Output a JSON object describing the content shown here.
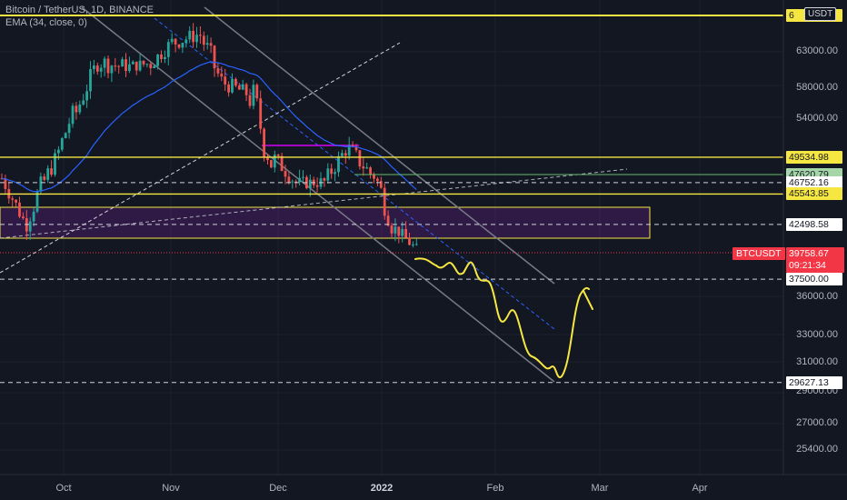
{
  "legend": {
    "symbol": "Bitcoin / TetherUS, 1D, BINANCE",
    "indicator": "EMA (34, close, 0)"
  },
  "currency_button": "USDT",
  "price_axis_labels": [
    "63000.00",
    "58000.00",
    "54000.00",
    "36000.00",
    "33000.00",
    "31000.00",
    "29000.00",
    "27000.00",
    "25400.00"
  ],
  "time_axis_labels": [
    {
      "text": "Oct",
      "bold": false
    },
    {
      "text": "Nov",
      "bold": false
    },
    {
      "text": "Dec",
      "bold": false
    },
    {
      "text": "2022",
      "bold": true
    },
    {
      "text": "Feb",
      "bold": false
    },
    {
      "text": "Mar",
      "bold": false
    },
    {
      "text": "Apr",
      "bold": false
    }
  ],
  "price_tags": [
    {
      "name": "level-6xxxx",
      "text": "6",
      "price": 67200,
      "bg": "#f5e642",
      "fg": "#131722"
    },
    {
      "name": "level-49534",
      "text": "49534.98",
      "price": 49534.98,
      "bg": "#f5e642",
      "fg": "#131722"
    },
    {
      "name": "level-47620",
      "text": "47620.79",
      "price": 47620.79,
      "bg": "#a5d6a7",
      "fg": "#131722"
    },
    {
      "name": "level-46752",
      "text": "46752.16",
      "price": 46752.16,
      "bg": "#ffffff",
      "fg": "#131722"
    },
    {
      "name": "level-45543",
      "text": "45543.85",
      "price": 45543.85,
      "bg": "#f5e642",
      "fg": "#131722"
    },
    {
      "name": "level-42498",
      "text": "42498.58",
      "price": 42498.58,
      "bg": "#ffffff",
      "fg": "#131722"
    },
    {
      "name": "level-37500",
      "text": "37500.00",
      "price": 37500,
      "bg": "#ffffff",
      "fg": "#131722"
    },
    {
      "name": "level-29627",
      "text": "29627.13",
      "price": 29627.13,
      "bg": "#ffffff",
      "fg": "#131722"
    }
  ],
  "last_price": {
    "symbol": "BTCUSDT",
    "price": "39758.67",
    "countdown": "09:21:34",
    "color": "#f23645"
  },
  "colors": {
    "up": "#26a69a",
    "down": "#ef5350",
    "ema": "#2962ff",
    "yellow": "#f5e642",
    "purple_zone": "#7b1fa2",
    "magenta": "#d500f9",
    "green_line": "#66bb6a",
    "channel": "#787b86",
    "dash": "#d1d4dc"
  },
  "chart_data": {
    "type": "candlestick",
    "x_axis": "date",
    "y_scale": "log",
    "series": [
      {
        "name": "BTCUSDT",
        "kind": "candles",
        "ohlc_sample": [
          [
            "2021-09-20",
            47200,
            47300,
            42500,
            43000
          ],
          [
            "2021-09-27",
            43000,
            48300,
            40800,
            47700
          ],
          [
            "2021-10-04",
            47700,
            55700,
            47600,
            54900
          ],
          [
            "2021-10-11",
            54900,
            62000,
            54300,
            61500
          ],
          [
            "2021-10-18",
            61500,
            67000,
            59500,
            60900
          ],
          [
            "2021-10-25",
            60900,
            62900,
            58000,
            61300
          ],
          [
            "2021-11-01",
            61300,
            66500,
            60000,
            64400
          ],
          [
            "2021-11-08",
            64400,
            69000,
            62300,
            65500
          ],
          [
            "2021-11-15",
            65500,
            66300,
            55600,
            58600
          ],
          [
            "2021-11-22",
            58600,
            59300,
            53200,
            57300
          ],
          [
            "2021-11-29",
            57300,
            59200,
            42000,
            49400
          ],
          [
            "2021-12-06",
            49400,
            51900,
            46800,
            46700
          ],
          [
            "2021-12-13",
            46700,
            49500,
            45500,
            46800
          ],
          [
            "2021-12-20",
            46800,
            51900,
            46500,
            50400
          ],
          [
            "2021-12-27",
            50400,
            52000,
            45900,
            47700
          ],
          [
            "2022-01-03",
            47700,
            47700,
            39700,
            41800
          ],
          [
            "2022-01-10",
            41800,
            43000,
            39600,
            39758.67
          ]
        ]
      },
      {
        "name": "EMA (34, close, 0)",
        "kind": "line"
      }
    ],
    "levels": [
      67200,
      49534.98,
      47620.79,
      46752.16,
      45543.85,
      42498.58,
      37500,
      29627.13
    ],
    "projection_low": 29627.13
  }
}
